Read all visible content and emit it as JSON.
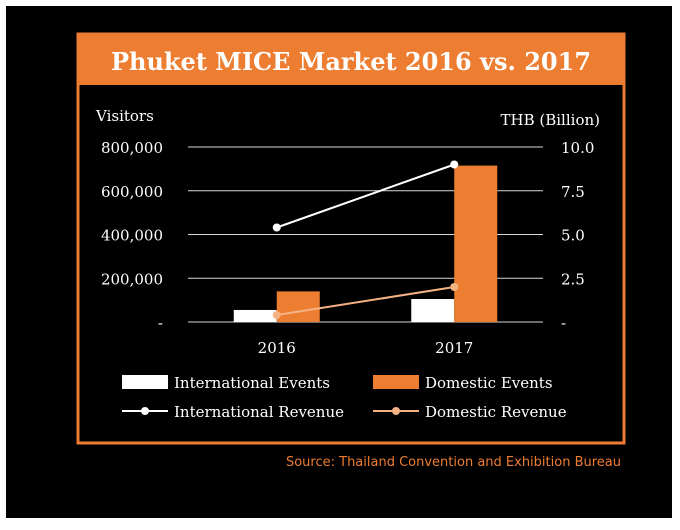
{
  "chart_data": {
    "type": "bar",
    "title": "Phuket MICE Market 2016 vs. 2017",
    "ylabel_left": "Visitors",
    "ylabel_right": "THB (Billion)",
    "categories": [
      "2016",
      "2017"
    ],
    "ylim_left": [
      0,
      800000
    ],
    "ylim_right": [
      0,
      10
    ],
    "left_ticks": [
      "-",
      "200,000",
      "400,000",
      "600,000",
      "800,000"
    ],
    "right_ticks": [
      "-",
      "2.5",
      "5.0",
      "7.5",
      "10.0"
    ],
    "grid": true,
    "legend_position": "bottom",
    "bar_series": [
      {
        "name": "International Events",
        "values": [
          55000,
          105000
        ],
        "color": "#ffffff"
      },
      {
        "name": "Domestic Events",
        "values": [
          140000,
          715000
        ],
        "color": "#ed7d31"
      }
    ],
    "line_series": [
      {
        "name": "International Revenue",
        "values": [
          5.4,
          9.0
        ],
        "color": "#ffffff",
        "axis": "right"
      },
      {
        "name": "Domestic Revenue",
        "values": [
          0.4,
          2.0
        ],
        "color": "#f4b183",
        "axis": "right"
      }
    ],
    "source": "Source: Thailand Convention and Exhibition Bureau"
  },
  "colors": {
    "frame": "#000000",
    "accent": "#ed7d31",
    "text": "#ffffff",
    "grid": "#d9d9d9"
  }
}
